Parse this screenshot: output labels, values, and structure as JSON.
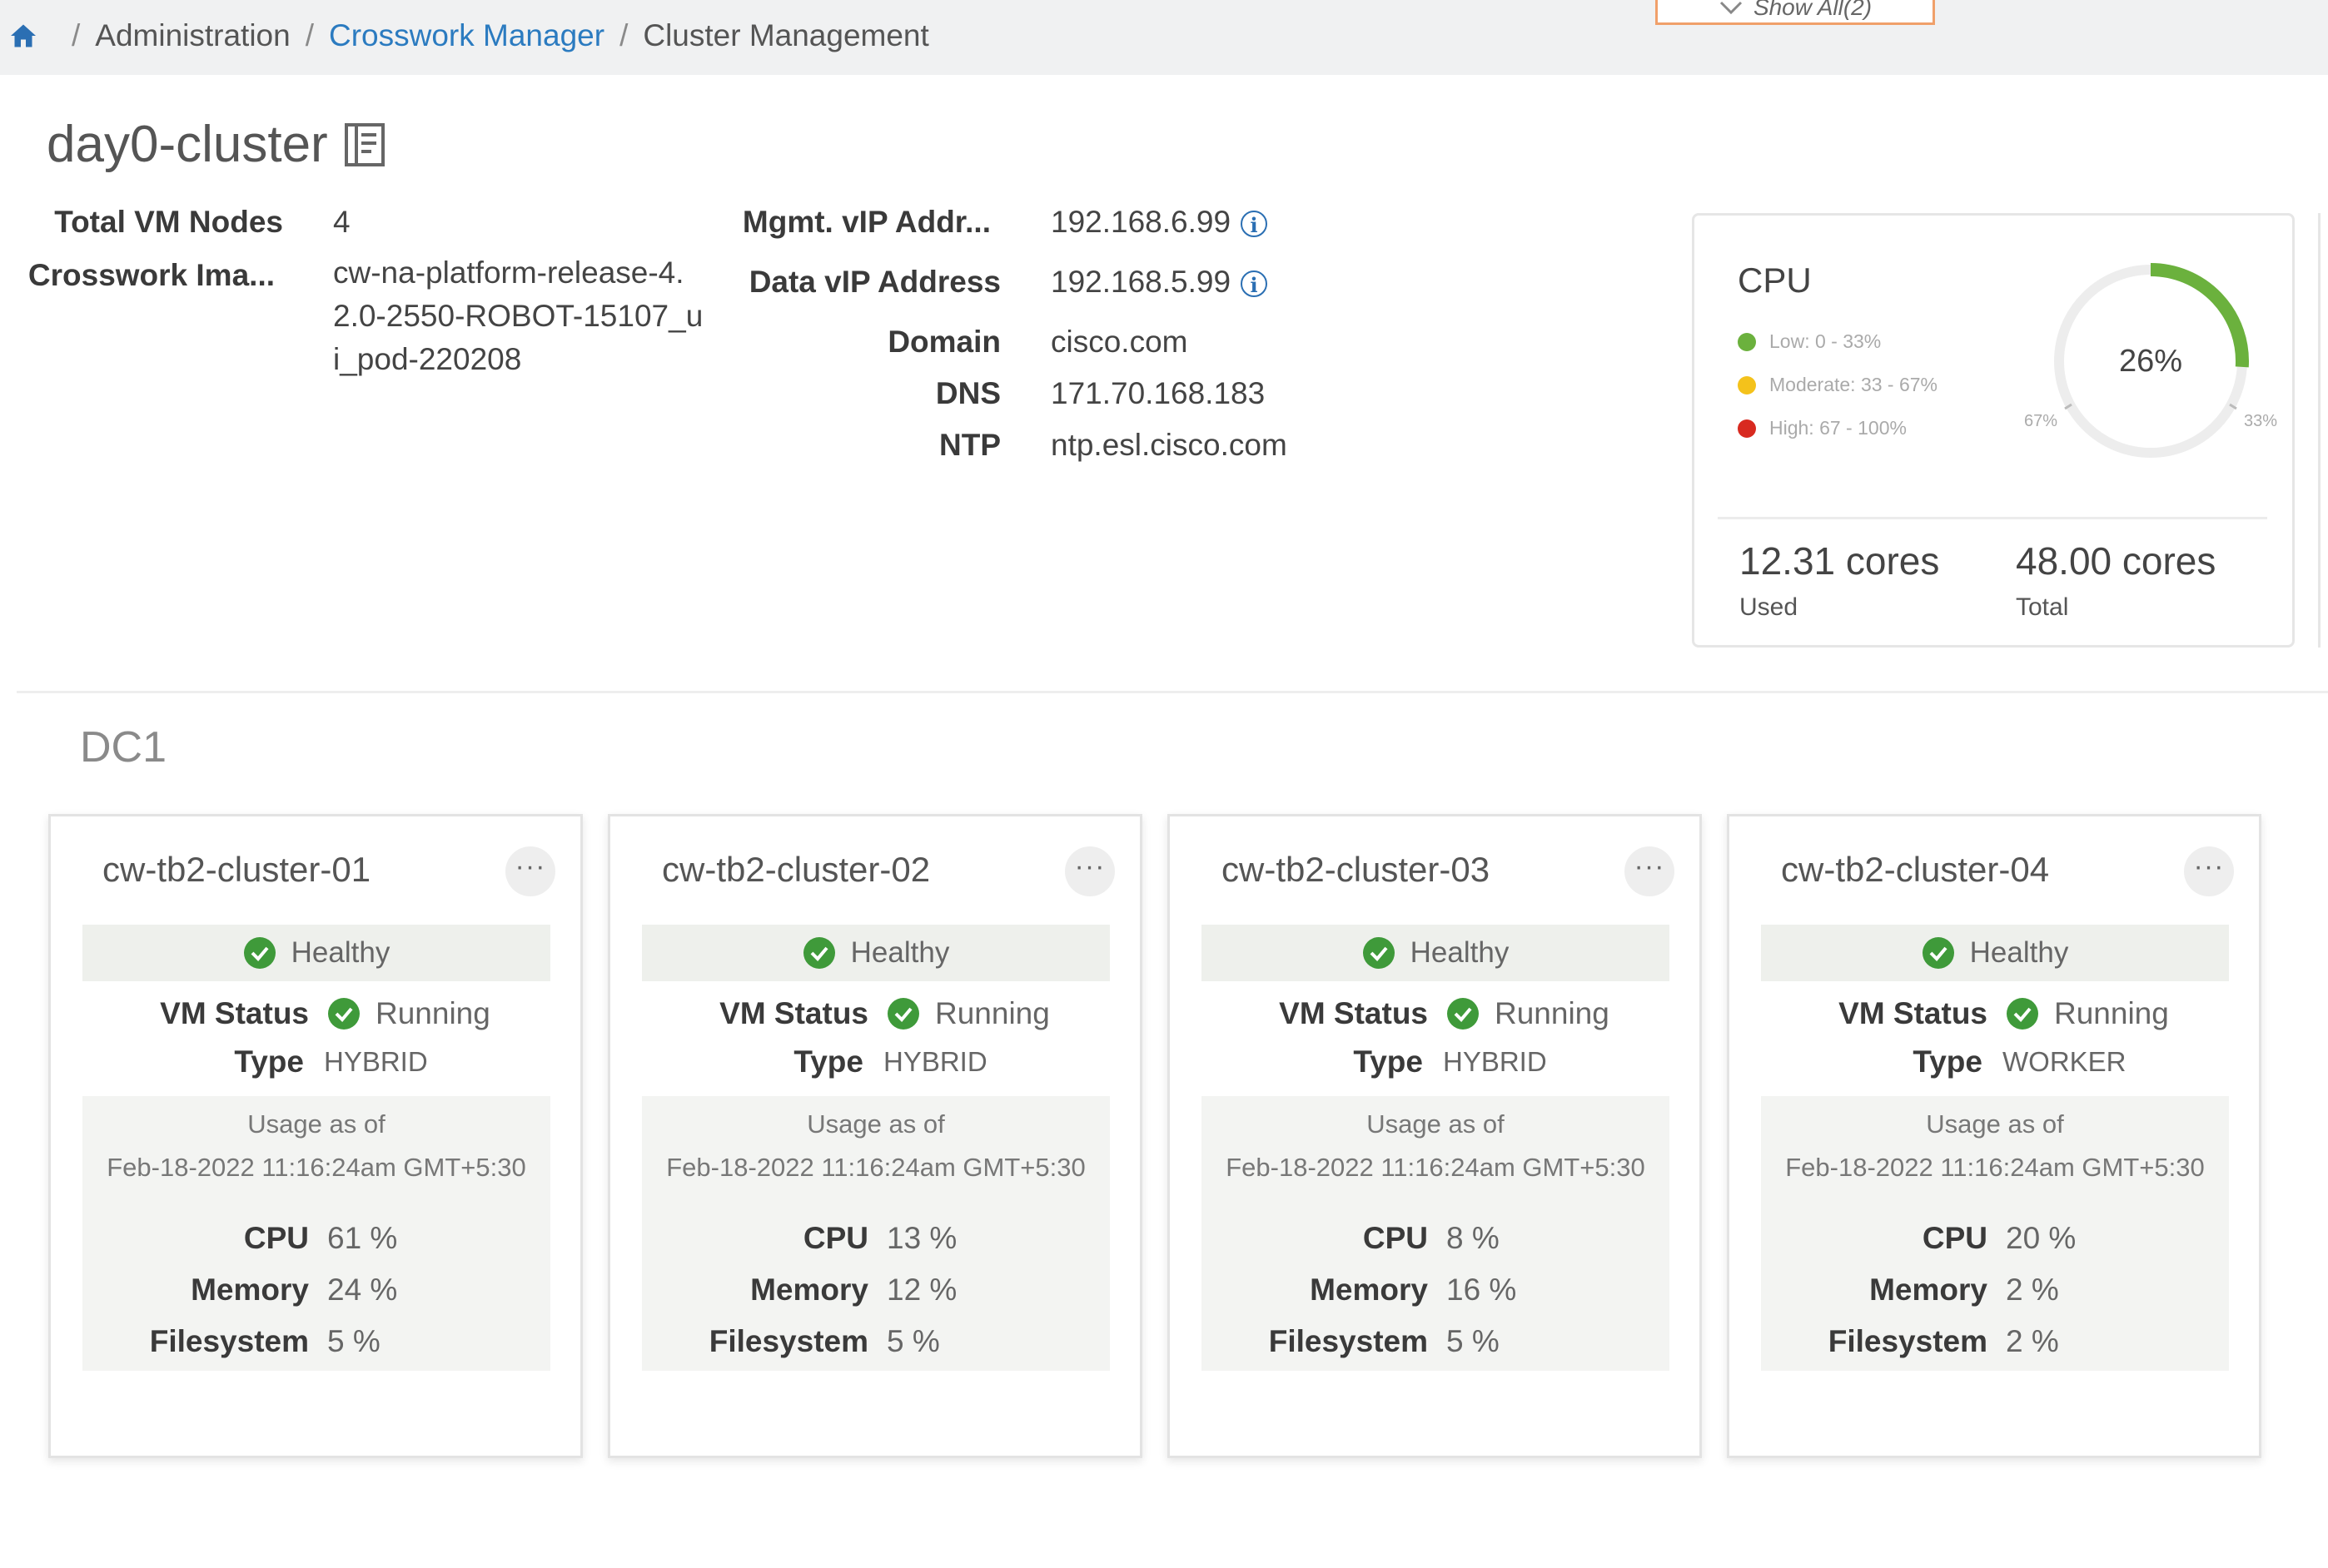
{
  "breadcrumb": {
    "items": [
      "Administration",
      "Crosswork Manager",
      "Cluster Management"
    ],
    "show_all": "Show All(2)"
  },
  "cluster": {
    "name": "day0-cluster",
    "fields_left": [
      {
        "label": "Total VM Nodes",
        "value": "4"
      },
      {
        "label": "Crosswork Ima...",
        "value": "cw-na-platform-release-4.2.0-2550-ROBOT-15107_ui_pod-220208"
      }
    ],
    "fields_right": [
      {
        "label": "Mgmt. vIP Addr...",
        "value": "192.168.6.99",
        "info": true
      },
      {
        "label": "Data vIP Address",
        "value": "192.168.5.99",
        "info": true
      },
      {
        "label": "Domain",
        "value": "cisco.com"
      },
      {
        "label": "DNS",
        "value": "171.70.168.183"
      },
      {
        "label": "NTP",
        "value": "ntp.esl.cisco.com"
      }
    ]
  },
  "cpu": {
    "title": "CPU",
    "legend": [
      {
        "label": "Low: 0 - 33%",
        "color": "#6bb13d"
      },
      {
        "label": "Moderate: 33 - 67%",
        "color": "#f4c21b"
      },
      {
        "label": "High: 67 - 100%",
        "color": "#d82a20"
      }
    ],
    "percent": 26,
    "percent_label": "26%",
    "mark_67": "67%",
    "mark_33": "33%",
    "used_value": "12.31 cores",
    "used_label": "Used",
    "total_value": "48.00 cores",
    "total_label": "Total"
  },
  "datacenter": {
    "title": "DC1",
    "nodes": [
      {
        "name": "cw-tb2-cluster-01",
        "health": "Healthy",
        "vm_status_label": "VM Status",
        "vm_status": "Running",
        "type_label": "Type",
        "type": "HYBRID",
        "usage_label": "Usage as of",
        "usage_time": "Feb-18-2022 11:16:24am GMT+5:30",
        "cpu_label": "CPU",
        "cpu": "61 %",
        "memory_label": "Memory",
        "memory": "24 %",
        "fs_label": "Filesystem",
        "fs": "5 %"
      },
      {
        "name": "cw-tb2-cluster-02",
        "health": "Healthy",
        "vm_status_label": "VM Status",
        "vm_status": "Running",
        "type_label": "Type",
        "type": "HYBRID",
        "usage_label": "Usage as of",
        "usage_time": "Feb-18-2022 11:16:24am GMT+5:30",
        "cpu_label": "CPU",
        "cpu": "13 %",
        "memory_label": "Memory",
        "memory": "12 %",
        "fs_label": "Filesystem",
        "fs": "5 %"
      },
      {
        "name": "cw-tb2-cluster-03",
        "health": "Healthy",
        "vm_status_label": "VM Status",
        "vm_status": "Running",
        "type_label": "Type",
        "type": "HYBRID",
        "usage_label": "Usage as of",
        "usage_time": "Feb-18-2022 11:16:24am GMT+5:30",
        "cpu_label": "CPU",
        "cpu": "8 %",
        "memory_label": "Memory",
        "memory": "16 %",
        "fs_label": "Filesystem",
        "fs": "5 %"
      },
      {
        "name": "cw-tb2-cluster-04",
        "health": "Healthy",
        "vm_status_label": "VM Status",
        "vm_status": "Running",
        "type_label": "Type",
        "type": "WORKER",
        "usage_label": "Usage as of",
        "usage_time": "Feb-18-2022 11:16:24am GMT+5:30",
        "cpu_label": "CPU",
        "cpu": "20 %",
        "memory_label": "Memory",
        "memory": "2 %",
        "fs_label": "Filesystem",
        "fs": "2 %"
      }
    ]
  },
  "icons": {
    "home": "home-icon",
    "notes": "notes-icon",
    "info": "info-icon",
    "check": "check-circle-icon",
    "more": "more-horizontal-icon"
  },
  "colors": {
    "link": "#2b7bc0",
    "healthy": "#3f9a3a",
    "donut_fill": "#6bb13d",
    "show_all_border": "#f0a06a"
  }
}
